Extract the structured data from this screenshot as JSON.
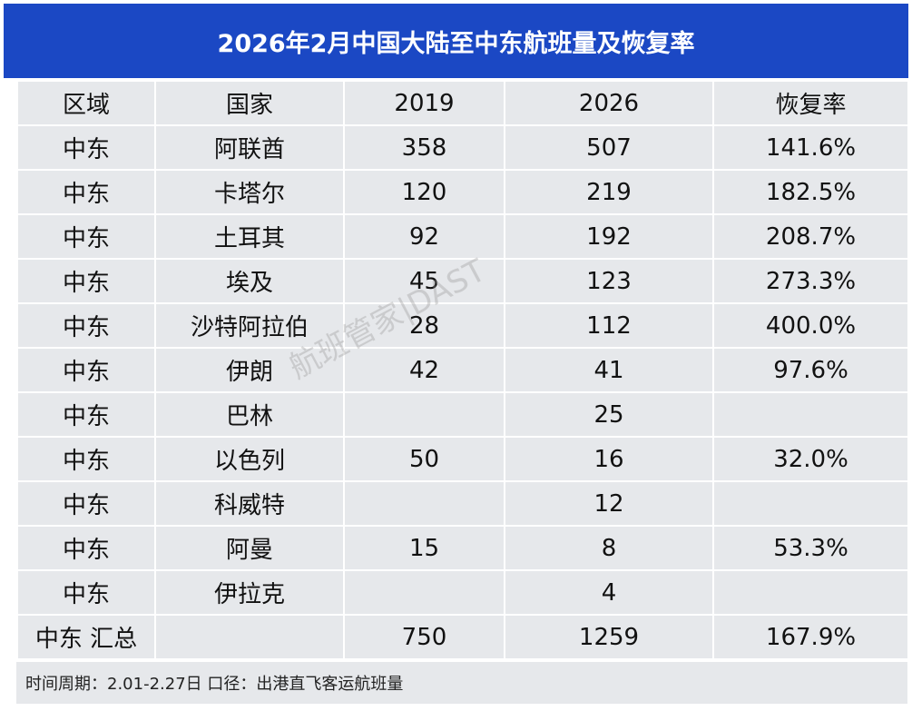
{
  "header": {
    "title": "2026年2月中国大陆至中东航班量及恢复率"
  },
  "table": {
    "columns": [
      "区域",
      "国家",
      "2019",
      "2026",
      "恢复率"
    ],
    "rows": [
      [
        "中东",
        "阿联酋",
        "358",
        "507",
        "141.6%"
      ],
      [
        "中东",
        "卡塔尔",
        "120",
        "219",
        "182.5%"
      ],
      [
        "中东",
        "土耳其",
        "92",
        "192",
        "208.7%"
      ],
      [
        "中东",
        "埃及",
        "45",
        "123",
        "273.3%"
      ],
      [
        "中东",
        "沙特阿拉伯",
        "28",
        "112",
        "400.0%"
      ],
      [
        "中东",
        "伊朗",
        "42",
        "41",
        "97.6%"
      ],
      [
        "中东",
        "巴林",
        null,
        "25",
        null
      ],
      [
        "中东",
        "以色列",
        "50",
        "16",
        "32.0%"
      ],
      [
        "中东",
        "科威特",
        null,
        "12",
        null
      ],
      [
        "中东",
        "阿曼",
        "15",
        "8",
        "53.3%"
      ],
      [
        "中东",
        "伊拉克",
        null,
        "4",
        null
      ],
      [
        "中东 汇总",
        null,
        "750",
        "1259",
        "167.9%"
      ]
    ]
  },
  "footer": {
    "note": "时间周期：2.01-2.27日    口径：出港直飞客运航班量"
  },
  "watermark": "航班管家|DAST"
}
